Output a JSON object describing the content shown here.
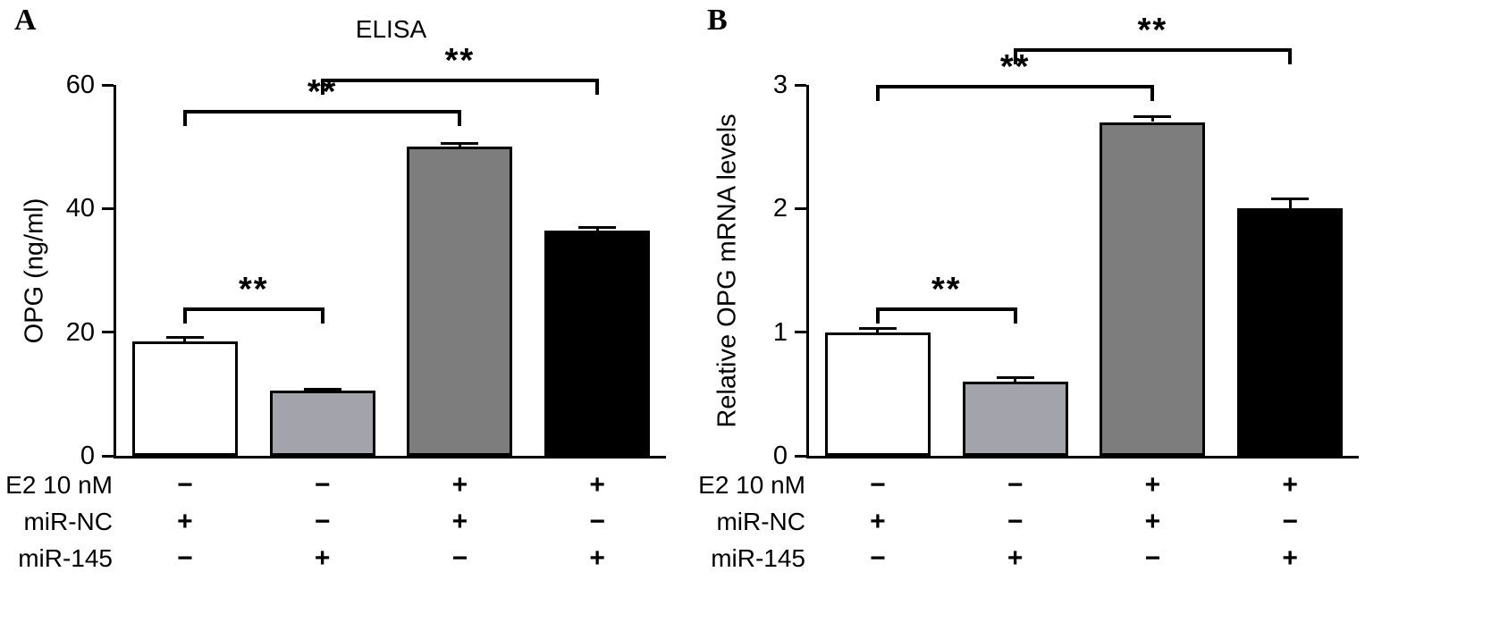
{
  "chart_data": [
    {
      "type": "bar",
      "panel_label": "A",
      "title": "ELISA",
      "ylabel": "OPG (ng/ml)",
      "ylim": [
        0,
        60
      ],
      "yticks": [
        0,
        20,
        40,
        60
      ],
      "grid": false,
      "legend": "none",
      "values": [
        18.5,
        10.5,
        50,
        36.5
      ],
      "errors": [
        0.6,
        0.3,
        0.5,
        0.4
      ],
      "bar_colors": [
        "#ffffff",
        "#a3a3ab",
        "#7d7d7d",
        "#000000"
      ],
      "bar_border_color": "#000000",
      "significance_brackets": [
        {
          "from": 0,
          "to": 1,
          "label": "**",
          "y": 24
        },
        {
          "from": 0,
          "to": 2,
          "label": "**",
          "y": 56
        },
        {
          "from": 1,
          "to": 3,
          "label": "**",
          "y": 61
        }
      ],
      "x_condition_rows": [
        {
          "name": "E2 10 nM",
          "symbols": [
            "−",
            "−",
            "+",
            "+"
          ]
        },
        {
          "name": "miR-NC",
          "symbols": [
            "+",
            "−",
            "+",
            "−"
          ]
        },
        {
          "name": "miR-145",
          "symbols": [
            "−",
            "+",
            "−",
            "+"
          ]
        }
      ]
    },
    {
      "type": "bar",
      "panel_label": "B",
      "title": "",
      "ylabel": "Relative OPG mRNA levels",
      "ylim": [
        0,
        3
      ],
      "yticks": [
        0,
        1,
        2,
        3
      ],
      "grid": false,
      "legend": "none",
      "values": [
        1.0,
        0.6,
        2.7,
        2.0
      ],
      "errors": [
        0.03,
        0.03,
        0.04,
        0.08
      ],
      "bar_colors": [
        "#ffffff",
        "#a3a3ab",
        "#7d7d7d",
        "#000000"
      ],
      "bar_border_color": "#000000",
      "significance_brackets": [
        {
          "from": 0,
          "to": 1,
          "label": "**",
          "y": 1.2
        },
        {
          "from": 0,
          "to": 2,
          "label": "**",
          "y": 3.0
        },
        {
          "from": 1,
          "to": 3,
          "label": "**",
          "y": 3.3
        }
      ],
      "x_condition_rows": [
        {
          "name": "E2 10 nM",
          "symbols": [
            "−",
            "−",
            "+",
            "+"
          ]
        },
        {
          "name": "miR-NC",
          "symbols": [
            "+",
            "−",
            "+",
            "−"
          ]
        },
        {
          "name": "miR-145",
          "symbols": [
            "−",
            "+",
            "−",
            "+"
          ]
        }
      ]
    }
  ]
}
